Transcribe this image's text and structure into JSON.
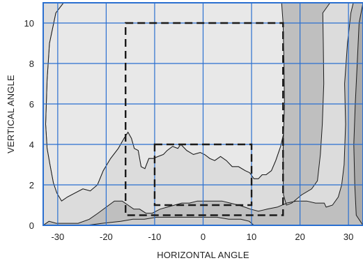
{
  "chart_data": {
    "type": "contour",
    "xlabel": "HORIZONTAL ANGLE",
    "ylabel": "VERTICAL ANGLE",
    "xlim": [
      -33,
      33
    ],
    "ylim": [
      0,
      11
    ],
    "xticks": [
      -30,
      -20,
      -10,
      0,
      10,
      20,
      30
    ],
    "yticks": [
      0,
      2,
      4,
      6,
      8,
      10
    ],
    "grid": true,
    "grid_color": "#2a6fd0",
    "frame_color": "#2a6fd0",
    "region_colors": [
      "#bfbfbf",
      "#cdcdcd",
      "#dcdcdc",
      "#e8e8e8",
      "#a9a9a9"
    ],
    "contours": [
      {
        "name": "inner",
        "color": "#e8e8e8",
        "points": [
          [
            -15.5,
            4.6
          ],
          [
            -14.8,
            4.3
          ],
          [
            -14.2,
            3.8
          ],
          [
            -13.4,
            3.7
          ],
          [
            -12.8,
            2.9
          ],
          [
            -12,
            2.8
          ],
          [
            -11.2,
            3.3
          ],
          [
            -10.3,
            3.3
          ],
          [
            -9.3,
            3.4
          ],
          [
            -8.2,
            3.5
          ],
          [
            -7.4,
            3.7
          ],
          [
            -6.3,
            3.9
          ],
          [
            -5.2,
            3.8
          ],
          [
            -4.6,
            4
          ],
          [
            -3.4,
            3.7
          ],
          [
            -2,
            3.5
          ],
          [
            -0.6,
            3.6
          ],
          [
            0.3,
            3.5
          ],
          [
            1.4,
            3.3
          ],
          [
            2.4,
            3.2
          ],
          [
            3.6,
            3.4
          ],
          [
            4.8,
            3.2
          ],
          [
            6,
            2.9
          ],
          [
            7.3,
            2.9
          ],
          [
            8.7,
            2.7
          ],
          [
            9.6,
            2.6
          ],
          [
            10.5,
            2.3
          ],
          [
            11.4,
            2.3
          ],
          [
            12.2,
            2.5
          ],
          [
            13,
            2.5
          ],
          [
            14.1,
            2.7
          ],
          [
            15,
            3.2
          ],
          [
            16,
            3.9
          ],
          [
            16.6,
            4.5
          ],
          [
            16.8,
            6
          ],
          [
            16.7,
            8
          ],
          [
            16.5,
            10
          ],
          [
            16.2,
            11
          ],
          [
            -28.8,
            11
          ],
          [
            -30.4,
            10.5
          ],
          [
            -31.7,
            9
          ],
          [
            -32.2,
            7.2
          ],
          [
            -32.5,
            5
          ],
          [
            -32.2,
            3.8
          ],
          [
            -31.6,
            3
          ],
          [
            -30.9,
            2.1
          ],
          [
            -30.2,
            1.6
          ],
          [
            -29.2,
            1.2
          ],
          [
            -28,
            1.4
          ],
          [
            -26.4,
            1.6
          ],
          [
            -24.8,
            1.8
          ],
          [
            -23.3,
            1.7
          ],
          [
            -21.8,
            2
          ],
          [
            -20.6,
            2.7
          ],
          [
            -19.1,
            3.3
          ],
          [
            -17.5,
            3.8
          ],
          [
            -16.3,
            4.3
          ]
        ]
      },
      {
        "name": "middle",
        "color": "#dcdcdc",
        "points": [
          [
            -33,
            0
          ],
          [
            -31.8,
            0.2
          ],
          [
            -30.3,
            0.1
          ],
          [
            -28.1,
            0.1
          ],
          [
            -25.8,
            0.1
          ],
          [
            -23.5,
            0.3
          ],
          [
            -21.7,
            0.6
          ],
          [
            -20,
            0.9
          ],
          [
            -18.3,
            1.2
          ],
          [
            -16.7,
            1.2
          ],
          [
            -15.5,
            1
          ],
          [
            -14.3,
            0.8
          ],
          [
            -13.1,
            0.8
          ],
          [
            -11.8,
            0.6
          ],
          [
            -10.5,
            0.6
          ],
          [
            -8.9,
            0.8
          ],
          [
            -7.4,
            0.9
          ],
          [
            -5.9,
            1
          ],
          [
            -4.4,
            1.1
          ],
          [
            -2.8,
            1.1
          ],
          [
            -1.2,
            1.2
          ],
          [
            0.5,
            1.2
          ],
          [
            2.2,
            1.2
          ],
          [
            3.9,
            1.2
          ],
          [
            5.6,
            1.1
          ],
          [
            7.3,
            1
          ],
          [
            8.6,
            0.9
          ],
          [
            9.8,
            0.8
          ],
          [
            11.4,
            0.7
          ],
          [
            13.2,
            0.8
          ],
          [
            15.3,
            0.9
          ],
          [
            17.3,
            1.1
          ],
          [
            19.2,
            1.2
          ],
          [
            21.4,
            1.2
          ],
          [
            23.2,
            1.1
          ],
          [
            25,
            1.1
          ],
          [
            25.4,
            0.9
          ],
          [
            26.7,
            1
          ],
          [
            27.9,
            1.4
          ],
          [
            28.6,
            2
          ],
          [
            29.1,
            3
          ],
          [
            29.4,
            5
          ],
          [
            29.2,
            7
          ],
          [
            29.8,
            9
          ],
          [
            30.5,
            10.5
          ],
          [
            31,
            11
          ],
          [
            26.2,
            11
          ],
          [
            24.7,
            10.5
          ],
          [
            24.8,
            9
          ],
          [
            24.9,
            7
          ],
          [
            24.6,
            5
          ],
          [
            24.2,
            3.5
          ],
          [
            23.6,
            2.2
          ],
          [
            22.4,
            1.8
          ],
          [
            20.3,
            1.5
          ],
          [
            18.3,
            1.1
          ],
          [
            17.2,
            1
          ],
          [
            16.6,
            1.5
          ],
          [
            16.5,
            2.5
          ],
          [
            16.5,
            3.5
          ],
          [
            16.6,
            4.5
          ],
          [
            16,
            3.9
          ],
          [
            15,
            3.2
          ],
          [
            14.1,
            2.7
          ],
          [
            13,
            2.5
          ],
          [
            12.2,
            2.5
          ],
          [
            11.4,
            2.3
          ],
          [
            10.5,
            2.3
          ],
          [
            9.6,
            2.6
          ],
          [
            8.7,
            2.7
          ],
          [
            7.3,
            2.9
          ],
          [
            6,
            2.9
          ],
          [
            4.8,
            3.2
          ],
          [
            3.6,
            3.4
          ],
          [
            2.4,
            3.2
          ],
          [
            1.4,
            3.3
          ],
          [
            0.3,
            3.5
          ],
          [
            -0.6,
            3.6
          ],
          [
            -2,
            3.5
          ],
          [
            -3.4,
            3.7
          ],
          [
            -4.6,
            4
          ],
          [
            -5.2,
            3.8
          ],
          [
            -6.3,
            3.9
          ],
          [
            -7.4,
            3.7
          ],
          [
            -8.2,
            3.5
          ],
          [
            -9.3,
            3.4
          ],
          [
            -10.3,
            3.3
          ],
          [
            -11.2,
            3.3
          ],
          [
            -12,
            2.8
          ],
          [
            -12.8,
            2.9
          ],
          [
            -13.4,
            3.7
          ],
          [
            -14.2,
            3.8
          ],
          [
            -14.8,
            4.3
          ],
          [
            -15.5,
            4.6
          ],
          [
            -16.3,
            4.3
          ],
          [
            -17.5,
            3.8
          ],
          [
            -19.1,
            3.3
          ],
          [
            -20.6,
            2.7
          ],
          [
            -21.8,
            2
          ],
          [
            -23.3,
            1.7
          ],
          [
            -24.8,
            1.8
          ],
          [
            -26.4,
            1.6
          ],
          [
            -28,
            1.4
          ],
          [
            -29.2,
            1.2
          ],
          [
            -30.2,
            1.6
          ],
          [
            -30.9,
            2.1
          ],
          [
            -31.6,
            3
          ],
          [
            -32.2,
            3.8
          ],
          [
            -32.5,
            5
          ],
          [
            -32.2,
            7.2
          ],
          [
            -31.7,
            9
          ],
          [
            -30.4,
            10.5
          ],
          [
            -28.8,
            11
          ],
          [
            -33,
            11
          ]
        ]
      },
      {
        "name": "low",
        "color": "#cdcdcd",
        "points": [
          [
            -24,
            0
          ],
          [
            -20.8,
            0.1
          ],
          [
            -17,
            0.2
          ],
          [
            -14.5,
            0.3
          ],
          [
            -12.1,
            0.3
          ],
          [
            -9.6,
            0.4
          ],
          [
            -7.1,
            0.4
          ],
          [
            -4.6,
            0.4
          ],
          [
            -2.1,
            0.4
          ],
          [
            0.4,
            0.4
          ],
          [
            2.9,
            0.4
          ],
          [
            5.3,
            0.3
          ],
          [
            7.8,
            0.3
          ],
          [
            9.5,
            0.2
          ],
          [
            10.5,
            0
          ]
        ]
      },
      {
        "name": "right-dark",
        "color": "#a9a9a9",
        "points": [
          [
            33,
            0
          ],
          [
            31.6,
            0.5
          ],
          [
            31.3,
            2
          ],
          [
            31.1,
            4
          ],
          [
            31.4,
            6
          ],
          [
            31.8,
            8
          ],
          [
            32.2,
            10
          ],
          [
            33,
            11
          ]
        ]
      }
    ],
    "rectangles": [
      {
        "name": "outer-box",
        "x": [
          -16,
          16.5
        ],
        "y": [
          0.5,
          10
        ]
      },
      {
        "name": "inner-box",
        "x": [
          -10,
          10
        ],
        "y": [
          1,
          4
        ]
      }
    ]
  }
}
